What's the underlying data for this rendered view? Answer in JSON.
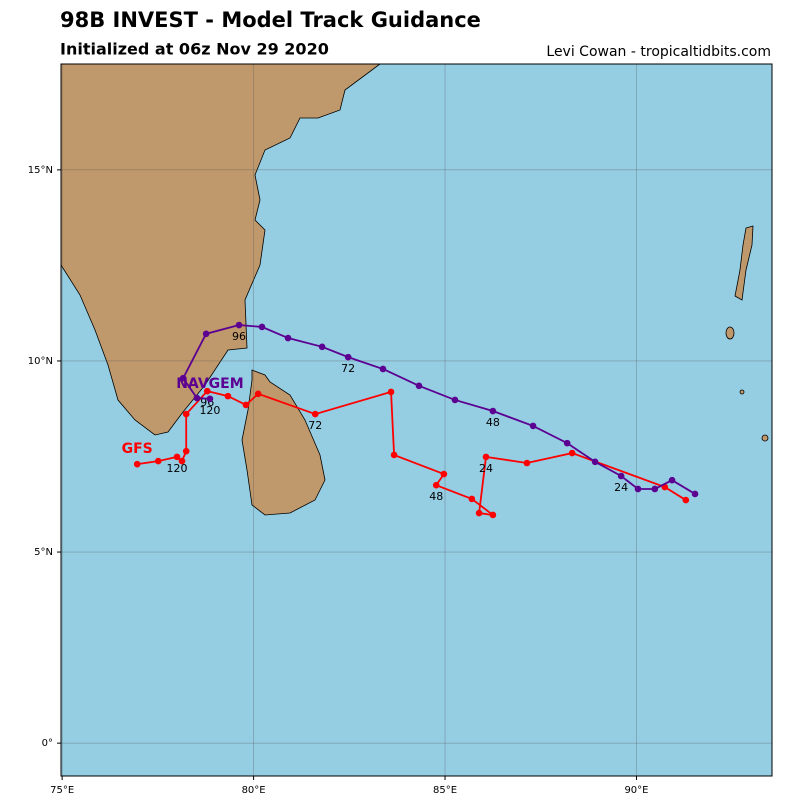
{
  "chart_data": {
    "type": "track",
    "title": "98B INVEST - Model Track Guidance",
    "subtitle": "Initialized at 06z Nov 29 2020",
    "credit": "Levi Cowan - tropicaltidbits.com",
    "xlim": [
      74.97,
      93.54
    ],
    "ylim": [
      -0.86,
      17.77
    ],
    "xticks": [
      {
        "value": 75,
        "label": "75°E"
      },
      {
        "value": 80,
        "label": "80°E"
      },
      {
        "value": 85,
        "label": "85°E"
      },
      {
        "value": 90,
        "label": "90°E"
      }
    ],
    "yticks": [
      {
        "value": 0,
        "label": "0°"
      },
      {
        "value": 5,
        "label": "5°N"
      },
      {
        "value": 10,
        "label": "10°N"
      },
      {
        "value": 15,
        "label": "15°N"
      }
    ],
    "grid": true,
    "series": [
      {
        "name": "GFS",
        "color": "#ff0000",
        "x": [
          91.29,
          90.74,
          88.32,
          87.14,
          86.07,
          85.89,
          86.25,
          85.7,
          84.77,
          84.97,
          83.67,
          83.59,
          81.61,
          80.12,
          79.8,
          79.33,
          78.79,
          78.24,
          78.24,
          78.13,
          78.0,
          77.51,
          76.96
        ],
        "values": [
          6.36,
          6.7,
          7.59,
          7.33,
          7.49,
          6.02,
          5.97,
          6.39,
          6.75,
          7.04,
          7.54,
          9.19,
          8.61,
          9.14,
          8.85,
          9.08,
          9.21,
          8.61,
          7.64,
          7.38,
          7.49,
          7.38,
          7.3
        ],
        "point_labels": [
          null,
          null,
          null,
          null,
          "24",
          null,
          null,
          null,
          "48",
          null,
          null,
          null,
          "72",
          null,
          null,
          null,
          "96",
          null,
          null,
          null,
          "120",
          null,
          null
        ]
      },
      {
        "name": "NAVGEM",
        "color": "#5b0091",
        "x": [
          91.53,
          90.93,
          90.48,
          90.04,
          89.6,
          88.92,
          88.19,
          87.3,
          86.25,
          85.26,
          84.32,
          83.38,
          82.47,
          81.79,
          80.9,
          80.22,
          79.62,
          78.76,
          78.16,
          78.52,
          78.86
        ],
        "values": [
          6.52,
          6.88,
          6.65,
          6.65,
          6.99,
          7.36,
          7.85,
          8.3,
          8.69,
          8.98,
          9.35,
          9.79,
          10.1,
          10.37,
          10.6,
          10.89,
          10.94,
          10.71,
          9.55,
          9.03,
          9.01
        ],
        "point_labels": [
          null,
          null,
          null,
          null,
          "24",
          null,
          null,
          null,
          "48",
          null,
          null,
          null,
          "72",
          null,
          null,
          null,
          "96",
          null,
          null,
          null,
          "120"
        ]
      }
    ]
  }
}
